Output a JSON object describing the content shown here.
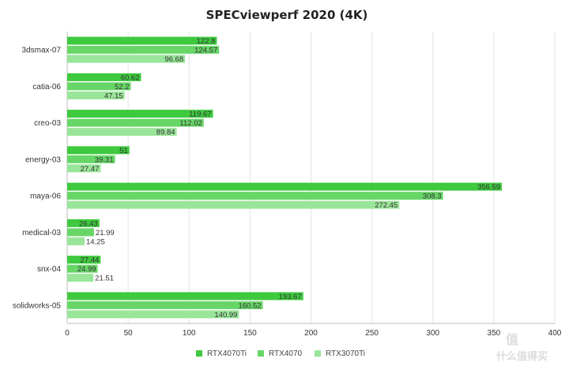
{
  "chart_data": {
    "type": "bar",
    "orientation": "horizontal",
    "title": "SPECviewperf 2020 (4K)",
    "categories": [
      "3dsmax-07",
      "catia-06",
      "creo-03",
      "energy-03",
      "maya-06",
      "medical-03",
      "snx-04",
      "solidworks-05"
    ],
    "series": [
      {
        "name": "RTX4070Ti",
        "color": "#3ec93e",
        "values": [
          122.8,
          60.62,
          119.67,
          51,
          356.59,
          26.43,
          27.44,
          193.67
        ],
        "labels": [
          "122.8",
          "60.62",
          "119.67",
          "51",
          "356.59",
          "26.43",
          "27.44",
          "193.67"
        ]
      },
      {
        "name": "RTX4070",
        "color": "#67d667",
        "values": [
          124.57,
          52.2,
          112.02,
          39.31,
          308.3,
          21.99,
          24.99,
          160.52
        ],
        "labels": [
          "124.57",
          "52.2",
          "112.02",
          "39.31",
          "308.3",
          "21.99",
          "24.99",
          "160.52"
        ]
      },
      {
        "name": "RTX3070Ti",
        "color": "#99e599",
        "values": [
          96.68,
          47.15,
          89.84,
          27.47,
          272.45,
          14.25,
          21.51,
          140.99
        ],
        "labels": [
          "96.68",
          "47.15",
          "89.84",
          "27.47",
          "272.45",
          "14.25",
          "21.51",
          "140.99"
        ]
      }
    ],
    "xlim": [
      0,
      400
    ],
    "xticks": [
      "0",
      "50",
      "100",
      "150",
      "200",
      "250",
      "300",
      "350",
      "400"
    ],
    "grid": true,
    "legend_position": "bottom"
  },
  "watermark": {
    "text": "值 么值得买",
    "lines": [
      "值",
      "什么值得买"
    ]
  }
}
